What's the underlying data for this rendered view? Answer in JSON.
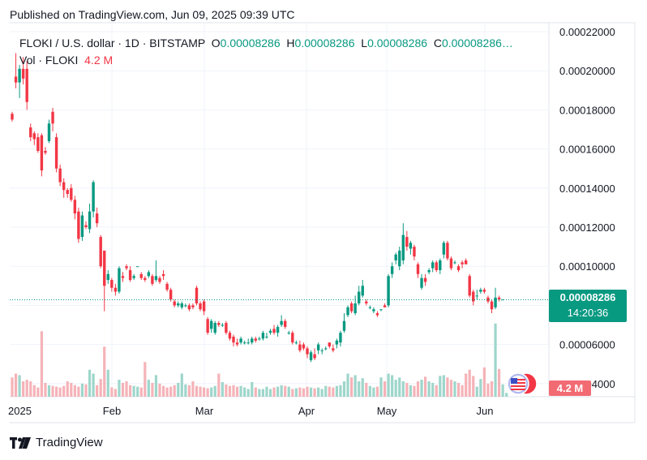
{
  "published": "Published on TradingView.com, Jun 09, 2025 09:39 UTC",
  "legend": {
    "symbol": "FLOKI / U.S. dollar · 1D · BITSTAMP",
    "o_label": "O",
    "o_value": "0.00008286",
    "h_label": "H",
    "h_value": "0.00008286",
    "l_label": "L",
    "l_value": "0.00008286",
    "c_label": "C",
    "c_value": "0.00008286…",
    "vol_label": "Vol · FLOKI",
    "vol_value": "4.2 M"
  },
  "price_tag": {
    "price": "0.00008286",
    "countdown": "14:20:36"
  },
  "vol_tag": "4.2 M",
  "footer": {
    "brand": "TradingView",
    "logo_icon": "tradingview-logo-icon"
  },
  "colors": {
    "up": "#089981",
    "down": "#f23645",
    "up_vol": "#9ed6cb",
    "down_vol": "#f5b3b8",
    "grid": "#f0f3fa"
  },
  "chart_data": {
    "type": "candlestick",
    "y_tick_labels": [
      "0.00022000",
      "0.00020000",
      "0.00018000",
      "0.00016000",
      "0.00014000",
      "0.00012000",
      "0.00010000",
      "0.00008000",
      "0.00006000",
      "0.00004000"
    ],
    "y_ticks": [
      0.00022,
      0.0002,
      0.00018,
      0.00016,
      0.00014,
      0.00012,
      0.0001,
      8e-05,
      6e-05,
      4e-05
    ],
    "x_tick_labels": [
      "2025",
      "Feb",
      "Mar",
      "Apr",
      "May",
      "Jun"
    ],
    "ylim": [
      3.45e-05,
      0.000225
    ],
    "grid": true,
    "last_price": 8.286e-05,
    "candles": [
      [
        0.000178,
        0.000175,
        0.000179,
        0.000174
      ],
      [
        0.000197,
        0.000194,
        0.000209,
        0.000191
      ],
      [
        0.000194,
        0.000201,
        0.000203,
        0.000186
      ],
      [
        0.000201,
        0.000196,
        0.000207,
        0.000193
      ],
      [
        0.000201,
        0.000184,
        0.000205,
        0.00018
      ],
      [
        0.000171,
        0.000166,
        0.000173,
        0.000164
      ],
      [
        0.000168,
        0.000165,
        0.000169,
        0.000162
      ],
      [
        0.000166,
        0.000159,
        0.000168,
        0.000158
      ],
      [
        0.000167,
        0.000149,
        0.000168,
        0.000146
      ],
      [
        0.000159,
        0.000158,
        0.000161,
        0.000157
      ],
      [
        0.000164,
        0.000173,
        0.000175,
        0.000163
      ],
      [
        0.000179,
        0.000173,
        0.000181,
        0.000169
      ],
      [
        0.000166,
        0.00015,
        0.000168,
        0.000148
      ],
      [
        0.00015,
        0.000143,
        0.000152,
        0.000141
      ],
      [
        0.000143,
        0.000139,
        0.000145,
        0.000135
      ],
      [
        0.000139,
        0.000137,
        0.00014,
        0.000135
      ],
      [
        0.00014,
        0.000134,
        0.000142,
        0.000133
      ],
      [
        0.000134,
        0.000127,
        0.000136,
        0.000124
      ],
      [
        0.000128,
        0.000114,
        0.00013,
        0.000112
      ],
      [
        0.000115,
        0.000126,
        0.000128,
        0.000113
      ],
      [
        0.000121,
        0.00012,
        0.000123,
        0.000119
      ],
      [
        0.000119,
        0.000128,
        0.000132,
        0.000117
      ],
      [
        0.000128,
        0.000143,
        0.000144,
        0.000125
      ],
      [
        0.000127,
        0.000122,
        0.00013,
        0.00012
      ],
      [
        0.000115,
        0.0001,
        0.000116,
        9.9e-05
      ],
      [
        0.000108,
        9e-05,
        0.000108,
        7.7e-05
      ],
      [
        9.3e-05,
        9.6e-05,
        9.8e-05,
        9.1e-05
      ],
      [
        9.3e-05,
        8.9e-05,
        9.4e-05,
        8.7e-05
      ],
      [
        8.9e-05,
        8.7e-05,
        9.1e-05,
        8.5e-05
      ],
      [
        8.7e-05,
        9.9e-05,
        0.0001,
        8.6e-05
      ],
      [
        9.5e-05,
        9.4e-05,
        9.7e-05,
        9.2e-05
      ],
      [
        0.0001,
        9.9e-05,
        0.000101,
        9.8e-05
      ],
      [
        9.8e-05,
        9.3e-05,
        0.0001,
        9.2e-05
      ],
      [
        9.4e-05,
        9.5e-05,
        9.6e-05,
        9.3e-05
      ],
      [
        0.0001,
        0.0001,
        0.0001,
        0.0001
      ],
      [
        9.6e-05,
        9.4e-05,
        9.7e-05,
        9.3e-05
      ],
      [
        9.4e-05,
        9.3e-05,
        9.5e-05,
        9.2e-05
      ],
      [
        9.5e-05,
        9.7e-05,
        9.8e-05,
        9.4e-05
      ],
      [
        9.5e-05,
        9.1e-05,
        9.6e-05,
        9e-05
      ],
      [
        9.3e-05,
        9.5e-05,
        0.000103,
        9.2e-05
      ],
      [
        9.4e-05,
        9.2e-05,
        9.5e-05,
        9.1e-05
      ],
      [
        9.6e-05,
        9.5e-05,
        9.8e-05,
        9.3e-05
      ],
      [
        9.1e-05,
        8.8e-05,
        9.2e-05,
        8.7e-05
      ],
      [
        8.8e-05,
        8.3e-05,
        8.9e-05,
        8.2e-05
      ],
      [
        8.2e-05,
        8e-05,
        8.3e-05,
        7.9e-05
      ],
      [
        8e-05,
        8.1e-05,
        8.2e-05,
        7.9e-05
      ],
      [
        7.9e-05,
        8.1e-05,
        8.2e-05,
        7.8e-05
      ],
      [
        8e-05,
        8e-05,
        8.1e-05,
        7.9e-05
      ],
      [
        8e-05,
        7.8e-05,
        8.1e-05,
        7.7e-05
      ],
      [
        8e-05,
        7.9e-05,
        8.1e-05,
        7.8e-05
      ],
      [
        8.9e-05,
        8.1e-05,
        9e-05,
        8e-05
      ],
      [
        8.1e-05,
        7.8e-05,
        8.2e-05,
        7.7e-05
      ],
      [
        8.2e-05,
        7.7e-05,
        8.3e-05,
        7.5e-05
      ],
      [
        7.3e-05,
        6.6e-05,
        7.4e-05,
        6.5e-05
      ],
      [
        6.8e-05,
        7.2e-05,
        7.3e-05,
        6.6e-05
      ],
      [
        6.6e-05,
        7.1e-05,
        7.2e-05,
        6.5e-05
      ],
      [
        7.1e-05,
        7e-05,
        7.2e-05,
        6.9e-05
      ],
      [
        7e-05,
        7e-05,
        7.1e-05,
        6.9e-05
      ],
      [
        7.1e-05,
        6.6e-05,
        7.2e-05,
        6.5e-05
      ],
      [
        6.6e-05,
        6.3e-05,
        6.7e-05,
        6.2e-05
      ],
      [
        6.4e-05,
        6.1e-05,
        6.5e-05,
        5.9e-05
      ],
      [
        6.1e-05,
        6e-05,
        6.3e-05,
        5.9e-05
      ],
      [
        6.1e-05,
        6.3e-05,
        6.4e-05,
        6e-05
      ],
      [
        6.1e-05,
        6.1e-05,
        6.2e-05,
        6e-05
      ],
      [
        6.1e-05,
        6.1e-05,
        6.3e-05,
        6e-05
      ],
      [
        6.1e-05,
        6.3e-05,
        6.4e-05,
        6e-05
      ],
      [
        6.3e-05,
        6.2e-05,
        6.4e-05,
        6.1e-05
      ],
      [
        6.3e-05,
        6.3e-05,
        6.4e-05,
        6.2e-05
      ],
      [
        6.3e-05,
        6.6e-05,
        6.7e-05,
        6.2e-05
      ],
      [
        6.4e-05,
        6.4e-05,
        6.6e-05,
        6.3e-05
      ],
      [
        6.6e-05,
        6.7e-05,
        6.8e-05,
        6.5e-05
      ],
      [
        6.8e-05,
        6.6e-05,
        7e-05,
        6.5e-05
      ],
      [
        6.6e-05,
        6.9e-05,
        7e-05,
        6.4e-05
      ],
      [
        7e-05,
        7.2e-05,
        7.5e-05,
        6.9e-05
      ],
      [
        7.2e-05,
        6.9e-05,
        7.3e-05,
        6.8e-05
      ],
      [
        6.6e-05,
        6.6e-05,
        6.7e-05,
        6.5e-05
      ],
      [
        6.6e-05,
        6.1e-05,
        6.7e-05,
        6e-05
      ],
      [
        6.1e-05,
        6.1e-05,
        6.2e-05,
        6e-05
      ],
      [
        6e-05,
        5.7e-05,
        6.2e-05,
        5.6e-05
      ],
      [
        6e-05,
        5.8e-05,
        6.1e-05,
        5.7e-05
      ],
      [
        5.8e-05,
        5.5e-05,
        5.9e-05,
        5.3e-05
      ],
      [
        5.2e-05,
        5.6e-05,
        5.7e-05,
        5.1e-05
      ],
      [
        5.5e-05,
        5.3e-05,
        5.8e-05,
        5.2e-05
      ],
      [
        5.7e-05,
        6e-05,
        6.1e-05,
        5.5e-05
      ],
      [
        5.7e-05,
        5.7e-05,
        5.8e-05,
        5.5e-05
      ],
      [
        5.8e-05,
        5.8e-05,
        5.9e-05,
        5.7e-05
      ],
      [
        6.1e-05,
        5.9e-05,
        6.1e-05,
        5.8e-05
      ],
      [
        5.8e-05,
        5.7e-05,
        6e-05,
        5.6e-05
      ],
      [
        6e-05,
        6.2e-05,
        6.3e-05,
        5.8e-05
      ],
      [
        6.1e-05,
        6.6e-05,
        6.7e-05,
        5.9e-05
      ],
      [
        6.7e-05,
        7.2e-05,
        7.6e-05,
        6.6e-05
      ],
      [
        7.5e-05,
        7.9e-05,
        8e-05,
        7.4e-05
      ],
      [
        8.1e-05,
        7.7e-05,
        8.2e-05,
        7.6e-05
      ],
      [
        7.6e-05,
        8.1e-05,
        8.5e-05,
        7.5e-05
      ],
      [
        8.1e-05,
        8.7e-05,
        9e-05,
        8e-05
      ],
      [
        8.5e-05,
        9e-05,
        9.3e-05,
        8.4e-05
      ],
      [
        8.2e-05,
        8.1e-05,
        8.3e-05,
        8e-05
      ],
      [
        7.9e-05,
        7.9e-05,
        8e-05,
        7.8e-05
      ],
      [
        7.7e-05,
        7.8e-05,
        7.9e-05,
        7.6e-05
      ],
      [
        7.6e-05,
        7.5e-05,
        7.7e-05,
        7.4e-05
      ],
      [
        7.8e-05,
        7.8e-05,
        7.8e-05,
        7.7e-05
      ],
      [
        8e-05,
        7.9e-05,
        8.1e-05,
        7.9e-05
      ],
      [
        8e-05,
        9.5e-05,
        9.6e-05,
        7.9e-05
      ],
      [
        9.6e-05,
        0.0001,
        0.000102,
        9.4e-05
      ],
      [
        0.000103,
        0.000106,
        0.000107,
        0.000101
      ],
      [
        0.0001,
        0.000108,
        0.00011,
        9.8e-05
      ],
      [
        0.000103,
        0.000116,
        0.000122,
        0.000101
      ],
      [
        0.000115,
        0.00011,
        0.000118,
        0.000108
      ],
      [
        0.000109,
        0.000112,
        0.000113,
        0.000106
      ],
      [
        0.00011,
        0.000105,
        0.000111,
        0.000103
      ],
      [
        0.000101,
        9.6e-05,
        0.000102,
        9.4e-05
      ],
      [
        8.9e-05,
        9.4e-05,
        9.6e-05,
        8.8e-05
      ],
      [
        9.4e-05,
        9.2e-05,
        9.6e-05,
        9e-05
      ],
      [
        9.7e-05,
        9.8e-05,
        9.9e-05,
        9.6e-05
      ],
      [
        9.9e-05,
        0.000102,
        0.000103,
        9.7e-05
      ],
      [
        0.000102,
        9.8e-05,
        0.000103,
        9.7e-05
      ],
      [
        9.8e-05,
        0.000103,
        0.000104,
        9.6e-05
      ],
      [
        0.000106,
        0.000112,
        0.000113,
        0.000104
      ],
      [
        0.000112,
        0.000104,
        0.000113,
        0.000103
      ],
      [
        0.000104,
        9.9e-05,
        0.000105,
        9.8e-05
      ],
      [
        0.000102,
        0.000102,
        0.000103,
        0.000101
      ],
      [
        0.0001,
        9.8e-05,
        0.000101,
        9.7e-05
      ],
      [
        0.000102,
        0.000101,
        0.000103,
        9.9e-05
      ],
      [
        0.000103,
        0.000101,
        0.000104,
        0.000101
      ],
      [
        9.5e-05,
        8.5e-05,
        9.6e-05,
        8.4e-05
      ],
      [
        8.7e-05,
        8.2e-05,
        8.8e-05,
        8e-05
      ],
      [
        8.5e-05,
        8.5e-05,
        8.8e-05,
        8.3e-05
      ],
      [
        8.7e-05,
        8.8e-05,
        8.9e-05,
        8.6e-05
      ],
      [
        8.8e-05,
        8.7e-05,
        8.9e-05,
        8.6e-05
      ],
      [
        8.4e-05,
        8.2e-05,
        8.5e-05,
        8.1e-05
      ],
      [
        8.2e-05,
        7.8e-05,
        8.3e-05,
        7.6e-05
      ],
      [
        7.9e-05,
        8.4e-05,
        8.9e-05,
        7.8e-05
      ],
      [
        8.4e-05,
        8.3e-05,
        8.5e-05,
        8.2e-05
      ],
      [
        8.3e-05,
        8.3e-05,
        8.3e-05,
        8.3e-05
      ]
    ],
    "volumes": [
      0.25,
      0.3,
      0.28,
      0.2,
      0.22,
      0.2,
      0.15,
      0.12,
      0.85,
      0.18,
      0.15,
      0.14,
      0.13,
      0.12,
      0.14,
      0.2,
      0.18,
      0.15,
      0.13,
      0.17,
      0.16,
      0.35,
      0.3,
      0.15,
      0.23,
      0.65,
      0.35,
      0.12,
      0.1,
      0.22,
      0.18,
      0.2,
      0.15,
      0.14,
      0.13,
      0.12,
      0.45,
      0.22,
      0.18,
      0.28,
      0.17,
      0.14,
      0.12,
      0.13,
      0.15,
      0.18,
      0.3,
      0.16,
      0.15,
      0.2,
      0.14,
      0.13,
      0.12,
      0.11,
      0.12,
      0.14,
      0.3,
      0.19,
      0.16,
      0.14,
      0.15,
      0.13,
      0.14,
      0.12,
      0.1,
      0.19,
      0.12,
      0.1,
      0.1,
      0.13,
      0.1,
      0.12,
      0.13,
      0.15,
      0.14,
      0.13,
      0.1,
      0.11,
      0.12,
      0.11,
      0.13,
      0.12,
      0.11,
      0.12,
      0.1,
      0.14,
      0.13,
      0.12,
      0.14,
      0.15,
      0.2,
      0.3,
      0.25,
      0.28,
      0.2,
      0.24,
      0.18,
      0.14,
      0.12,
      0.13,
      0.25,
      0.2,
      0.3,
      0.28,
      0.22,
      0.25,
      0.2,
      0.18,
      0.15,
      0.14,
      0.2,
      0.22,
      0.26,
      0.2,
      0.18,
      0.15,
      0.27,
      0.28,
      0.25,
      0.22,
      0.2,
      0.18,
      0.15,
      0.3,
      0.35,
      0.27,
      0.13,
      0.23,
      0.38,
      0.17,
      0.2,
      0.23,
      0.36,
      0.16,
      0.05
    ],
    "volume_up_overrides": {
      "131": 0.95
    }
  }
}
